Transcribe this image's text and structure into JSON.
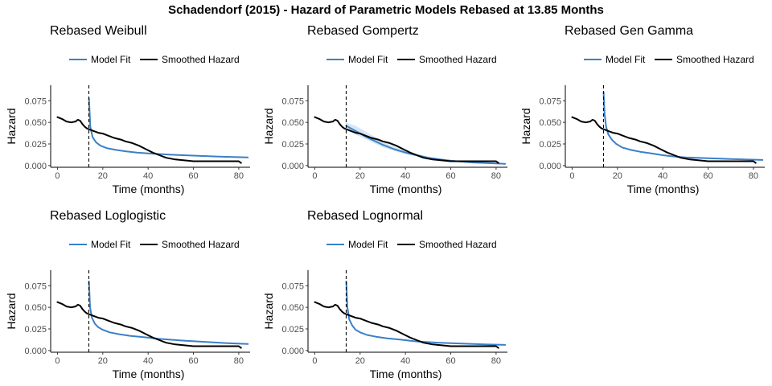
{
  "title": "Schadendorf (2015) - Hazard of Parametric Models Rebased at 13.85 Months",
  "legend": {
    "model_fit": "Model Fit",
    "smoothed_hazard": "Smoothed Hazard"
  },
  "colors": {
    "model_fit": "#3a80c8",
    "smoothed_hazard": "#000000",
    "ci_band": "#c8dcef"
  },
  "chart_data": [
    {
      "type": "line",
      "title": "Rebased Weibull",
      "xlabel": "Time (months)",
      "ylabel": "Hazard",
      "xlim": [
        -3,
        85
      ],
      "ylim": [
        -0.002,
        0.093
      ],
      "xticks": [
        0,
        20,
        40,
        60,
        80
      ],
      "yticks": [
        0.0,
        0.025,
        0.05,
        0.075
      ],
      "ytick_labels": [
        "0.000",
        "0.025",
        "0.050",
        "0.075"
      ],
      "vline": 13.85,
      "series": [
        {
          "name": "Model Fit",
          "x": [
            13.9,
            14.5,
            15.5,
            17,
            19,
            22,
            26,
            30,
            35,
            40,
            50,
            60,
            70,
            84
          ],
          "y": [
            0.078,
            0.045,
            0.033,
            0.027,
            0.023,
            0.02,
            0.018,
            0.0165,
            0.015,
            0.014,
            0.0125,
            0.0115,
            0.0105,
            0.0095
          ]
        },
        {
          "name": "Smoothed Hazard",
          "x": [
            0,
            2,
            4,
            6,
            8,
            9,
            10,
            11,
            12,
            13,
            14,
            16,
            18,
            20,
            22,
            25,
            28,
            30,
            33,
            36,
            39,
            42,
            45,
            48,
            52,
            56,
            60,
            65,
            70,
            75,
            80,
            81
          ],
          "y": [
            0.056,
            0.054,
            0.051,
            0.05,
            0.051,
            0.053,
            0.052,
            0.048,
            0.045,
            0.043,
            0.042,
            0.04,
            0.038,
            0.037,
            0.035,
            0.032,
            0.03,
            0.028,
            0.026,
            0.023,
            0.019,
            0.015,
            0.012,
            0.009,
            0.007,
            0.006,
            0.005,
            0.005,
            0.005,
            0.005,
            0.005,
            0.003
          ]
        }
      ]
    },
    {
      "type": "line",
      "title": "Rebased Gompertz",
      "xlabel": "Time (months)",
      "ylabel": "Hazard",
      "xlim": [
        -3,
        85
      ],
      "ylim": [
        -0.002,
        0.093
      ],
      "xticks": [
        0,
        20,
        40,
        60,
        80
      ],
      "yticks": [
        0.0,
        0.025,
        0.05,
        0.075
      ],
      "ytick_labels": [
        "0.000",
        "0.025",
        "0.050",
        "0.075"
      ],
      "vline": 13.85,
      "series": [
        {
          "name": "Model Fit",
          "x": [
            13.9,
            18,
            22,
            26,
            30,
            35,
            40,
            45,
            50,
            55,
            60,
            65,
            70,
            75,
            84
          ],
          "y": [
            0.046,
            0.04,
            0.034,
            0.029,
            0.024,
            0.019,
            0.015,
            0.012,
            0.009,
            0.007,
            0.0055,
            0.0045,
            0.0035,
            0.003,
            0.002
          ],
          "ci_upper": [
            0.05,
            0.046,
            0.04,
            0.034,
            0.028,
            0.022,
            0.017,
            0.0135,
            0.0105,
            0.0082,
            0.0065,
            0.0052,
            0.004,
            0.0034,
            0.0023
          ],
          "ci_lower": [
            0.042,
            0.036,
            0.031,
            0.026,
            0.021,
            0.017,
            0.013,
            0.0105,
            0.0078,
            0.006,
            0.0047,
            0.0038,
            0.003,
            0.0026,
            0.0017
          ]
        },
        {
          "name": "Smoothed Hazard",
          "x": [
            0,
            2,
            4,
            6,
            8,
            9,
            10,
            11,
            12,
            13,
            14,
            16,
            18,
            20,
            22,
            25,
            28,
            30,
            33,
            36,
            39,
            42,
            45,
            48,
            52,
            56,
            60,
            65,
            70,
            75,
            80,
            81
          ],
          "y": [
            0.056,
            0.054,
            0.051,
            0.05,
            0.051,
            0.053,
            0.052,
            0.048,
            0.045,
            0.043,
            0.042,
            0.04,
            0.038,
            0.037,
            0.035,
            0.032,
            0.03,
            0.028,
            0.026,
            0.023,
            0.019,
            0.015,
            0.012,
            0.009,
            0.007,
            0.006,
            0.005,
            0.005,
            0.005,
            0.005,
            0.005,
            0.003
          ]
        }
      ]
    },
    {
      "type": "line",
      "title": "Rebased Gen Gamma",
      "xlabel": "Time (months)",
      "ylabel": "Hazard",
      "xlim": [
        -3,
        85
      ],
      "ylim": [
        -0.002,
        0.093
      ],
      "xticks": [
        0,
        20,
        40,
        60,
        80
      ],
      "yticks": [
        0.0,
        0.025,
        0.05,
        0.075
      ],
      "ytick_labels": [
        "0.000",
        "0.025",
        "0.050",
        "0.075"
      ],
      "vline": 13.85,
      "series": [
        {
          "name": "Model Fit",
          "x": [
            13.9,
            14.3,
            15,
            16,
            17.5,
            19.5,
            22,
            26,
            30,
            35,
            40,
            45,
            50,
            60,
            70,
            84
          ],
          "y": [
            0.085,
            0.06,
            0.045,
            0.036,
            0.03,
            0.025,
            0.021,
            0.018,
            0.016,
            0.014,
            0.012,
            0.0105,
            0.0095,
            0.0085,
            0.0075,
            0.0065
          ]
        },
        {
          "name": "Smoothed Hazard",
          "x": [
            0,
            2,
            4,
            6,
            8,
            9,
            10,
            11,
            12,
            13,
            14,
            16,
            18,
            20,
            22,
            25,
            28,
            30,
            33,
            36,
            39,
            42,
            45,
            48,
            52,
            56,
            60,
            65,
            70,
            75,
            80,
            81
          ],
          "y": [
            0.056,
            0.054,
            0.051,
            0.05,
            0.051,
            0.053,
            0.052,
            0.048,
            0.045,
            0.043,
            0.042,
            0.04,
            0.038,
            0.037,
            0.035,
            0.032,
            0.03,
            0.028,
            0.026,
            0.023,
            0.019,
            0.015,
            0.012,
            0.009,
            0.007,
            0.006,
            0.005,
            0.005,
            0.005,
            0.005,
            0.005,
            0.003
          ]
        }
      ]
    },
    {
      "type": "line",
      "title": "Rebased Loglogistic",
      "xlabel": "Time (months)",
      "ylabel": "Hazard",
      "xlim": [
        -3,
        85
      ],
      "ylim": [
        -0.002,
        0.093
      ],
      "xticks": [
        0,
        20,
        40,
        60,
        80
      ],
      "yticks": [
        0.0,
        0.025,
        0.05,
        0.075
      ],
      "ytick_labels": [
        "0.000",
        "0.025",
        "0.050",
        "0.075"
      ],
      "vline": 13.85,
      "series": [
        {
          "name": "Model Fit",
          "x": [
            13.9,
            14.4,
            15.2,
            16.5,
            18,
            20,
            23,
            27,
            32,
            38,
            45,
            55,
            65,
            75,
            84
          ],
          "y": [
            0.08,
            0.05,
            0.038,
            0.031,
            0.027,
            0.024,
            0.021,
            0.019,
            0.017,
            0.0155,
            0.0135,
            0.0115,
            0.01,
            0.0085,
            0.0075
          ]
        },
        {
          "name": "Smoothed Hazard",
          "x": [
            0,
            2,
            4,
            6,
            8,
            9,
            10,
            11,
            12,
            13,
            14,
            16,
            18,
            20,
            22,
            25,
            28,
            30,
            33,
            36,
            39,
            42,
            45,
            48,
            52,
            56,
            60,
            65,
            70,
            75,
            80,
            81
          ],
          "y": [
            0.056,
            0.054,
            0.051,
            0.05,
            0.051,
            0.053,
            0.052,
            0.048,
            0.045,
            0.043,
            0.042,
            0.04,
            0.038,
            0.037,
            0.035,
            0.032,
            0.03,
            0.028,
            0.026,
            0.023,
            0.019,
            0.015,
            0.012,
            0.009,
            0.007,
            0.006,
            0.005,
            0.005,
            0.005,
            0.005,
            0.005,
            0.003
          ]
        }
      ]
    },
    {
      "type": "line",
      "title": "Rebased Lognormal",
      "xlabel": "Time (months)",
      "ylabel": "Hazard",
      "xlim": [
        -3,
        85
      ],
      "ylim": [
        -0.002,
        0.093
      ],
      "xticks": [
        0,
        20,
        40,
        60,
        80
      ],
      "yticks": [
        0.0,
        0.025,
        0.05,
        0.075
      ],
      "ytick_labels": [
        "0.000",
        "0.025",
        "0.050",
        "0.075"
      ],
      "vline": 13.85,
      "series": [
        {
          "name": "Model Fit",
          "x": [
            13.9,
            14.4,
            15.2,
            16.5,
            18,
            20,
            23,
            27,
            32,
            38,
            45,
            55,
            65,
            75,
            84
          ],
          "y": [
            0.08,
            0.05,
            0.036,
            0.029,
            0.024,
            0.021,
            0.018,
            0.016,
            0.014,
            0.0125,
            0.0105,
            0.009,
            0.008,
            0.007,
            0.0065
          ]
        },
        {
          "name": "Smoothed Hazard",
          "x": [
            0,
            2,
            4,
            6,
            8,
            9,
            10,
            11,
            12,
            13,
            14,
            16,
            18,
            20,
            22,
            25,
            28,
            30,
            33,
            36,
            39,
            42,
            45,
            48,
            52,
            56,
            60,
            65,
            70,
            75,
            80,
            81
          ],
          "y": [
            0.056,
            0.054,
            0.051,
            0.05,
            0.051,
            0.053,
            0.052,
            0.048,
            0.045,
            0.043,
            0.042,
            0.04,
            0.038,
            0.037,
            0.035,
            0.032,
            0.03,
            0.028,
            0.026,
            0.023,
            0.019,
            0.015,
            0.012,
            0.009,
            0.007,
            0.006,
            0.005,
            0.005,
            0.005,
            0.005,
            0.005,
            0.003
          ]
        }
      ]
    }
  ]
}
